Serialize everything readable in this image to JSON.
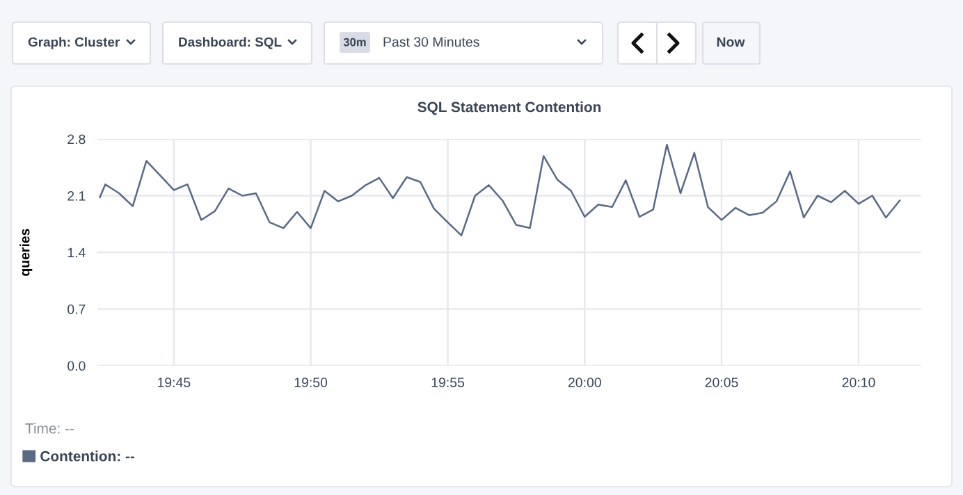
{
  "chart_data": {
    "type": "line",
    "title": "SQL Statement Contention",
    "ylabel": "queries",
    "annotations": [
      "Graph: Cluster",
      "Dashboard: SQL",
      "30m",
      "Past 30 Minutes",
      "Now",
      "Time: --"
    ],
    "x": [
      19.705,
      19.7083,
      19.7167,
      19.725,
      19.7333,
      19.7417,
      19.75,
      19.7583,
      19.7667,
      19.775,
      19.7833,
      19.7917,
      19.8,
      19.8083,
      19.8167,
      19.825,
      19.8333,
      19.8417,
      19.85,
      19.8583,
      19.8667,
      19.875,
      19.8833,
      19.8917,
      19.9,
      19.9083,
      19.9167,
      19.925,
      19.9333,
      19.9417,
      19.95,
      19.9583,
      19.9667,
      19.975,
      19.9833,
      19.9917,
      20.0,
      20.0083,
      20.0167,
      20.025,
      20.0333,
      20.0417,
      20.05,
      20.0583,
      20.0667,
      20.075,
      20.0833,
      20.0917,
      20.1,
      20.1083,
      20.1167,
      20.125,
      20.1333,
      20.1417,
      20.15,
      20.1583,
      20.1667,
      20.175,
      20.1833,
      20.1917
    ],
    "series": [
      {
        "name": "Contention: --",
        "color": "#5a6a85",
        "values": [
          2.08,
          2.24,
          2.13,
          1.97,
          2.53,
          2.35,
          2.17,
          2.24,
          1.8,
          1.91,
          2.19,
          2.1,
          2.13,
          1.77,
          1.7,
          1.9,
          1.7,
          2.16,
          2.03,
          2.1,
          2.23,
          2.32,
          2.07,
          2.33,
          2.27,
          1.94,
          1.77,
          1.61,
          2.1,
          2.23,
          2.04,
          1.74,
          1.7,
          2.59,
          2.3,
          2.16,
          1.84,
          1.99,
          1.96,
          2.29,
          1.84,
          1.93,
          2.73,
          2.13,
          2.63,
          1.96,
          1.8,
          1.95,
          1.86,
          1.89,
          2.03,
          2.4,
          1.83,
          2.1,
          2.02,
          2.16,
          2.0,
          2.1,
          1.83,
          2.04
        ]
      }
    ],
    "xlim": [
      19.7035,
      20.2048
    ],
    "xticks": [
      {
        "value": 19.75,
        "label": "19:45"
      },
      {
        "value": 19.8333,
        "label": "19:50"
      },
      {
        "value": 19.9167,
        "label": "19:55"
      },
      {
        "value": 20.0,
        "label": "20:00"
      },
      {
        "value": 20.0833,
        "label": "20:05"
      },
      {
        "value": 20.1667,
        "label": "20:10"
      }
    ],
    "ylim": [
      0.0,
      2.8
    ],
    "yticks": [
      {
        "value": 0.0,
        "label": "0.0"
      },
      {
        "value": 0.7,
        "label": "0.7"
      },
      {
        "value": 1.4,
        "label": "1.4"
      },
      {
        "value": 2.1,
        "label": "2.1"
      },
      {
        "value": 2.8,
        "label": "2.8"
      }
    ],
    "grid": true,
    "legend": "bottom left",
    "marker": "none",
    "line_style": "solid"
  }
}
